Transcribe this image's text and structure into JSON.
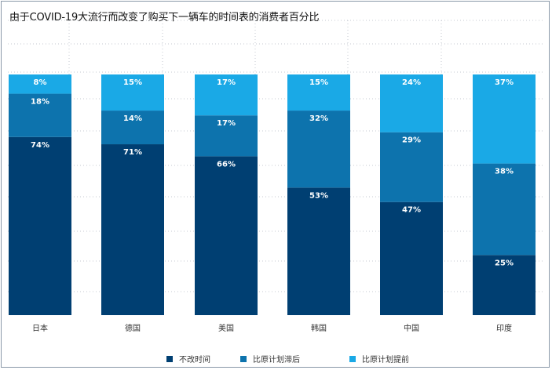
{
  "chart_data": {
    "type": "bar",
    "stacked": true,
    "title": "由于COVID-19大流行而改变了购买下一辆车的时间表的消费者百分比",
    "categories": [
      "日本",
      "德国",
      "美国",
      "韩国",
      "中国",
      "印度"
    ],
    "series": [
      {
        "name": "不改时间",
        "color": "#003f72",
        "values": [
          74,
          71,
          66,
          53,
          47,
          25
        ]
      },
      {
        "name": "比原计划滞后",
        "color": "#0d73ad",
        "values": [
          18,
          14,
          17,
          32,
          29,
          38
        ]
      },
      {
        "name": "比原计划提前",
        "color": "#1aa9e6",
        "values": [
          8,
          15,
          17,
          15,
          24,
          37
        ]
      }
    ],
    "value_suffix": "%",
    "ylim": [
      0,
      100
    ],
    "grid": true,
    "legend_position": "bottom"
  }
}
